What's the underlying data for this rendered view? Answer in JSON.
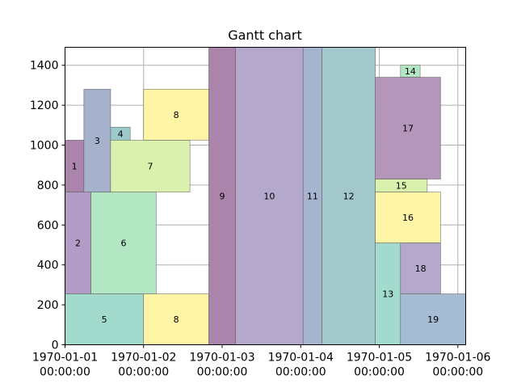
{
  "chart_data": {
    "type": "bar",
    "subtype": "gantt",
    "title": "Gantt chart",
    "xlabel": "",
    "ylabel": "",
    "x_unit": "days",
    "x_start_date": "1970-01-01",
    "xlim": [
      0,
      5.1
    ],
    "ylim": [
      0,
      1490
    ],
    "grid": true,
    "x_ticks": [
      {
        "value": 0,
        "label_date": "1970-01-01",
        "label_time": "00:00:00"
      },
      {
        "value": 1,
        "label_date": "1970-01-02",
        "label_time": "00:00:00"
      },
      {
        "value": 2,
        "label_date": "1970-01-03",
        "label_time": "00:00:00"
      },
      {
        "value": 3,
        "label_date": "1970-01-04",
        "label_time": "00:00:00"
      },
      {
        "value": 4,
        "label_date": "1970-01-05",
        "label_time": "00:00:00"
      },
      {
        "value": 5,
        "label_date": "1970-01-06",
        "label_time": "00:00:00"
      }
    ],
    "y_ticks": [
      0,
      200,
      400,
      600,
      800,
      1000,
      1200,
      1400
    ],
    "tasks": [
      {
        "label": "1",
        "start": 0.0,
        "end": 0.24,
        "y_low": 765,
        "y_high": 1025,
        "color": "#ab84ac"
      },
      {
        "label": "2",
        "start": 0.0,
        "end": 0.33,
        "y_low": 255,
        "y_high": 765,
        "color": "#b49cc8"
      },
      {
        "label": "3",
        "start": 0.24,
        "end": 0.58,
        "y_low": 765,
        "y_high": 1280,
        "color": "#a6b2cc"
      },
      {
        "label": "4",
        "start": 0.58,
        "end": 0.83,
        "y_low": 1025,
        "y_high": 1090,
        "color": "#9ccaca"
      },
      {
        "label": "5",
        "start": 0.0,
        "end": 1.0,
        "y_low": 0,
        "y_high": 255,
        "color": "#a2dacd"
      },
      {
        "label": "6",
        "start": 0.33,
        "end": 1.16,
        "y_low": 255,
        "y_high": 765,
        "color": "#b3e6c3"
      },
      {
        "label": "7",
        "start": 0.58,
        "end": 1.59,
        "y_low": 765,
        "y_high": 1025,
        "color": "#daf1ae"
      },
      {
        "label": "8",
        "start": 1.0,
        "end": 1.83,
        "y_low": 1025,
        "y_high": 1280,
        "color": "#fdf4a6"
      },
      {
        "label": "8",
        "start": 1.0,
        "end": 1.83,
        "y_low": 0,
        "y_high": 255,
        "color": "#fdf4a6"
      },
      {
        "label": "9",
        "start": 1.83,
        "end": 2.17,
        "y_low": 0,
        "y_high": 1490,
        "color": "#ab84ac"
      },
      {
        "label": "10",
        "start": 2.17,
        "end": 3.03,
        "y_low": 0,
        "y_high": 1490,
        "color": "#b4a8cc"
      },
      {
        "label": "11",
        "start": 3.03,
        "end": 3.27,
        "y_low": 0,
        "y_high": 1490,
        "color": "#a6b4d0"
      },
      {
        "label": "12",
        "start": 3.27,
        "end": 3.95,
        "y_low": 0,
        "y_high": 1490,
        "color": "#a2c8cc"
      },
      {
        "label": "13",
        "start": 3.95,
        "end": 4.27,
        "y_low": 0,
        "y_high": 510,
        "color": "#a2dacd"
      },
      {
        "label": "14",
        "start": 4.27,
        "end": 4.52,
        "y_low": 1340,
        "y_high": 1400,
        "color": "#b3e6c3"
      },
      {
        "label": "15",
        "start": 3.95,
        "end": 4.61,
        "y_low": 765,
        "y_high": 830,
        "color": "#daf1ae"
      },
      {
        "label": "16",
        "start": 3.95,
        "end": 4.78,
        "y_low": 510,
        "y_high": 765,
        "color": "#fdf4a6"
      },
      {
        "label": "17",
        "start": 3.95,
        "end": 4.78,
        "y_low": 830,
        "y_high": 1340,
        "color": "#b396b9"
      },
      {
        "label": "18",
        "start": 4.27,
        "end": 4.78,
        "y_low": 255,
        "y_high": 510,
        "color": "#b4a8cc"
      },
      {
        "label": "19",
        "start": 4.27,
        "end": 5.1,
        "y_low": 0,
        "y_high": 255,
        "color": "#a6bcd4"
      }
    ]
  }
}
